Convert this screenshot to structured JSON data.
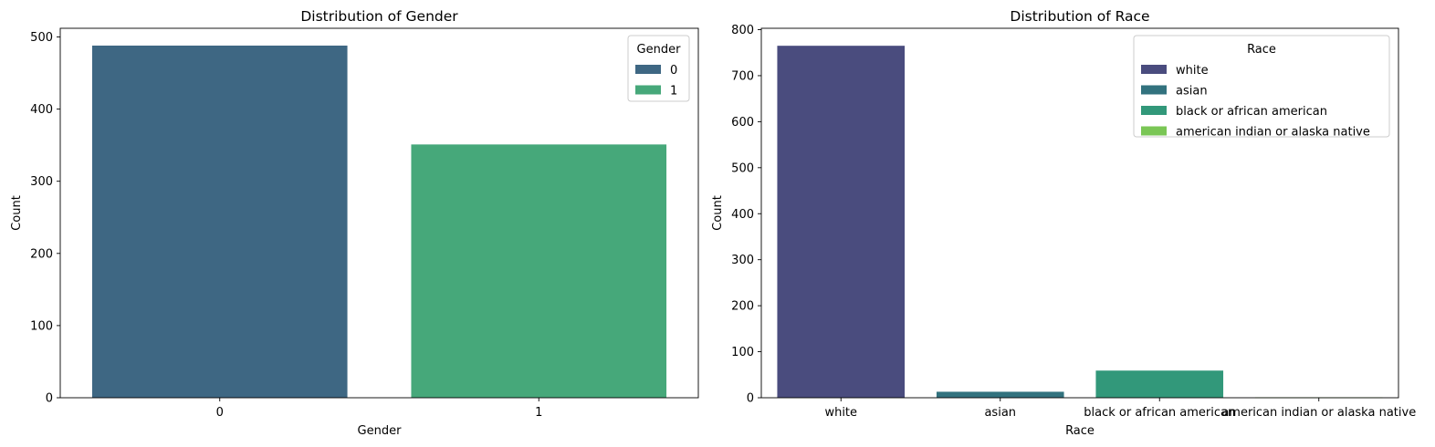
{
  "chart_data": [
    {
      "type": "bar",
      "title": "Distribution of Gender",
      "xlabel": "Gender",
      "ylabel": "Count",
      "categories": [
        "0",
        "1"
      ],
      "values": [
        488,
        351
      ],
      "colors": [
        "#3e6783",
        "#46a87a"
      ],
      "ylim": [
        0,
        512
      ],
      "yticks": [
        0,
        100,
        200,
        300,
        400,
        500
      ],
      "grid": false,
      "legend": {
        "title": "Gender",
        "position": "top-right",
        "entries": [
          {
            "label": "0",
            "color": "#3e6783"
          },
          {
            "label": "1",
            "color": "#46a87a"
          }
        ]
      }
    },
    {
      "type": "bar",
      "title": "Distribution of Race",
      "xlabel": "Race",
      "ylabel": "Count",
      "categories": [
        "white",
        "asian",
        "black or african american",
        "american indian or alaska native"
      ],
      "values": [
        765,
        13,
        59,
        1
      ],
      "colors": [
        "#4a4c7e",
        "#32727e",
        "#32987a",
        "#7ac655"
      ],
      "ylim": [
        0,
        803
      ],
      "yticks": [
        0,
        100,
        200,
        300,
        400,
        500,
        600,
        700,
        800
      ],
      "grid": false,
      "legend": {
        "title": "Race",
        "position": "top-right",
        "entries": [
          {
            "label": "white",
            "color": "#4a4c7e"
          },
          {
            "label": "asian",
            "color": "#32727e"
          },
          {
            "label": "black or african american",
            "color": "#32987a"
          },
          {
            "label": "american indian or alaska native",
            "color": "#7ac655"
          }
        ]
      }
    }
  ]
}
